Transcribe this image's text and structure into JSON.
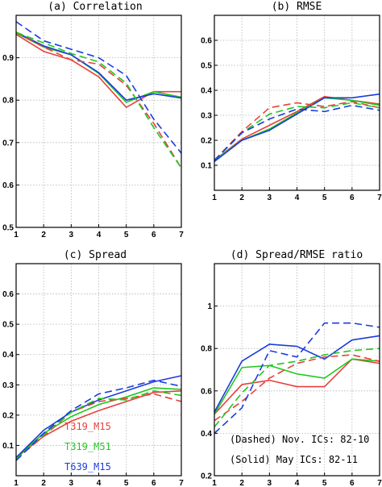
{
  "colors": {
    "T319_M15": "#e8403c",
    "T319_M51": "#1ec81e",
    "T639_M15": "#1a3cdc",
    "grid": "#b4b4b4"
  },
  "chart_data": [
    {
      "type": "line",
      "title": "(a) Correlation",
      "x": [
        1,
        2,
        3,
        4,
        5,
        6,
        7
      ],
      "xlim": [
        1,
        7
      ],
      "ylim": [
        0.5,
        1.0
      ],
      "yticks": [
        "0.5",
        "0.6",
        "0.7",
        "0.8",
        "0.9"
      ],
      "ytick_values": [
        0.5,
        0.6,
        0.7,
        0.8,
        0.9
      ],
      "series": [
        {
          "color_key": "T319_M15",
          "style": "solid",
          "values": [
            0.955,
            0.915,
            0.895,
            0.855,
            0.783,
            0.82,
            0.82
          ]
        },
        {
          "color_key": "T319_M51",
          "style": "solid",
          "values": [
            0.958,
            0.925,
            0.907,
            0.863,
            0.795,
            0.82,
            0.807
          ]
        },
        {
          "color_key": "T639_M15",
          "style": "solid",
          "values": [
            0.96,
            0.928,
            0.907,
            0.865,
            0.8,
            0.815,
            0.805
          ]
        },
        {
          "color_key": "T319_M15",
          "style": "dashed",
          "values": [
            0.96,
            0.925,
            0.895,
            0.885,
            0.835,
            0.745,
            0.64
          ]
        },
        {
          "color_key": "T319_M51",
          "style": "dashed",
          "values": [
            0.96,
            0.935,
            0.91,
            0.89,
            0.84,
            0.735,
            0.64
          ]
        },
        {
          "color_key": "T639_M15",
          "style": "dashed",
          "values": [
            0.985,
            0.94,
            0.92,
            0.9,
            0.858,
            0.755,
            0.675
          ]
        }
      ]
    },
    {
      "type": "line",
      "title": "(b) RMSE",
      "x": [
        1,
        2,
        3,
        4,
        5,
        6,
        7
      ],
      "xlim": [
        1,
        7
      ],
      "ylim": [
        0.0,
        0.7
      ],
      "yticks": [
        "0.1",
        "0.2",
        "0.3",
        "0.4",
        "0.5",
        "0.6"
      ],
      "ytick_values": [
        0.1,
        0.2,
        0.3,
        0.4,
        0.5,
        0.6
      ],
      "series": [
        {
          "color_key": "T319_M15",
          "style": "solid",
          "values": [
            0.12,
            0.205,
            0.26,
            0.315,
            0.375,
            0.36,
            0.345
          ]
        },
        {
          "color_key": "T319_M51",
          "style": "solid",
          "values": [
            0.12,
            0.2,
            0.245,
            0.31,
            0.37,
            0.36,
            0.34
          ]
        },
        {
          "color_key": "T639_M15",
          "style": "solid",
          "values": [
            0.115,
            0.2,
            0.24,
            0.305,
            0.37,
            0.37,
            0.385
          ]
        },
        {
          "color_key": "T319_M15",
          "style": "dashed",
          "values": [
            0.12,
            0.235,
            0.33,
            0.35,
            0.335,
            0.355,
            0.33
          ]
        },
        {
          "color_key": "T319_M51",
          "style": "dashed",
          "values": [
            0.12,
            0.23,
            0.305,
            0.335,
            0.33,
            0.35,
            0.33
          ]
        },
        {
          "color_key": "T639_M15",
          "style": "dashed",
          "values": [
            0.12,
            0.23,
            0.285,
            0.325,
            0.315,
            0.34,
            0.32
          ]
        }
      ]
    },
    {
      "type": "line",
      "title": "(c) Spread",
      "x": [
        1,
        2,
        3,
        4,
        5,
        6,
        7
      ],
      "xlim": [
        1,
        7
      ],
      "ylim": [
        0.0,
        0.7
      ],
      "yticks": [
        "0.1",
        "0.2",
        "0.3",
        "0.4",
        "0.5",
        "0.6"
      ],
      "ytick_values": [
        0.1,
        0.2,
        0.3,
        0.4,
        0.5,
        0.6
      ],
      "legend": [
        {
          "label": "T319_M15",
          "color_key": "T319_M15"
        },
        {
          "label": "T319_M51",
          "color_key": "T319_M51"
        },
        {
          "label": "T639_M15",
          "color_key": "T639_M15"
        }
      ],
      "series": [
        {
          "color_key": "T319_M15",
          "style": "solid",
          "values": [
            0.06,
            0.13,
            0.18,
            0.215,
            0.245,
            0.275,
            0.28
          ]
        },
        {
          "color_key": "T319_M51",
          "style": "solid",
          "values": [
            0.06,
            0.14,
            0.195,
            0.235,
            0.26,
            0.29,
            0.285
          ]
        },
        {
          "color_key": "T639_M15",
          "style": "solid",
          "values": [
            0.06,
            0.15,
            0.21,
            0.25,
            0.28,
            0.31,
            0.33
          ]
        },
        {
          "color_key": "T319_M15",
          "style": "dashed",
          "values": [
            0.055,
            0.13,
            0.21,
            0.245,
            0.255,
            0.27,
            0.245
          ]
        },
        {
          "color_key": "T319_M51",
          "style": "dashed",
          "values": [
            0.055,
            0.135,
            0.21,
            0.255,
            0.25,
            0.28,
            0.265
          ]
        },
        {
          "color_key": "T639_M15",
          "style": "dashed",
          "values": [
            0.05,
            0.14,
            0.215,
            0.27,
            0.29,
            0.315,
            0.295
          ]
        }
      ]
    },
    {
      "type": "line",
      "title": "(d) Spread/RMSE ratio",
      "x": [
        1,
        2,
        3,
        4,
        5,
        6,
        7
      ],
      "xlim": [
        1,
        7
      ],
      "ylim": [
        0.2,
        1.2
      ],
      "yticks": [
        "0.2",
        "0.4",
        "0.6",
        "0.8",
        "1"
      ],
      "ytick_values": [
        0.2,
        0.4,
        0.6,
        0.8,
        1.0
      ],
      "annotations": [
        "(Dashed) Nov. ICs: 82-10",
        "(Solid) May ICs: 82-11"
      ],
      "series": [
        {
          "color_key": "T319_M15",
          "style": "solid",
          "values": [
            0.49,
            0.63,
            0.65,
            0.62,
            0.62,
            0.75,
            0.73
          ]
        },
        {
          "color_key": "T319_M51",
          "style": "solid",
          "values": [
            0.49,
            0.71,
            0.72,
            0.68,
            0.66,
            0.75,
            0.74
          ]
        },
        {
          "color_key": "T639_M15",
          "style": "solid",
          "values": [
            0.5,
            0.74,
            0.82,
            0.81,
            0.75,
            0.84,
            0.86
          ]
        },
        {
          "color_key": "T319_M15",
          "style": "dashed",
          "values": [
            0.46,
            0.55,
            0.66,
            0.73,
            0.76,
            0.77,
            0.74
          ]
        },
        {
          "color_key": "T319_M51",
          "style": "dashed",
          "values": [
            0.43,
            0.59,
            0.72,
            0.74,
            0.77,
            0.79,
            0.8
          ]
        },
        {
          "color_key": "T639_M15",
          "style": "dashed",
          "values": [
            0.4,
            0.52,
            0.79,
            0.76,
            0.92,
            0.92,
            0.9
          ]
        }
      ]
    }
  ]
}
